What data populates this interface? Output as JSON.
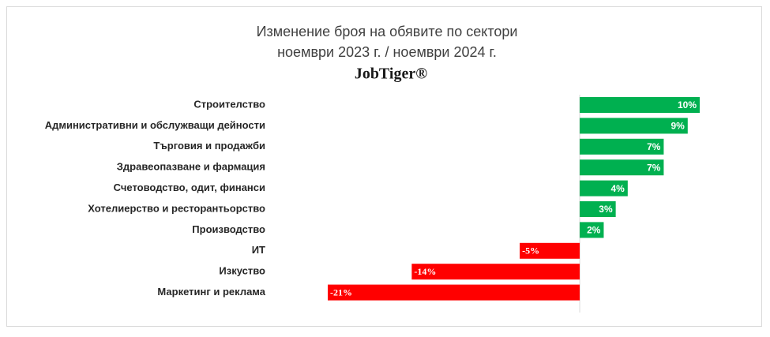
{
  "chart_data": {
    "type": "bar",
    "orientation": "horizontal",
    "title": "Изменение броя на обявите по сектори",
    "subtitle": "ноември 2023 г. / ноември 2024 г.",
    "brand": "JobTiger®",
    "categories": [
      "Строителство",
      "Административни и обслужващи дейности",
      "Търговия и продажби",
      "Здравеопазване и фармация",
      "Счетоводство, одит, финанси",
      "Хотелиерство и ресторантьорство",
      "Производство",
      "ИТ",
      "Изкуство",
      "Маркетинг и реклама"
    ],
    "values": [
      10,
      9,
      7,
      7,
      4,
      3,
      2,
      -5,
      -14,
      -21
    ],
    "value_labels": [
      "10%",
      "9%",
      "7%",
      "7%",
      "4%",
      "3%",
      "2%",
      "-5%",
      "-14%",
      "-21%"
    ],
    "positive_color": "#00b050",
    "negative_color": "#ff0000"
  }
}
